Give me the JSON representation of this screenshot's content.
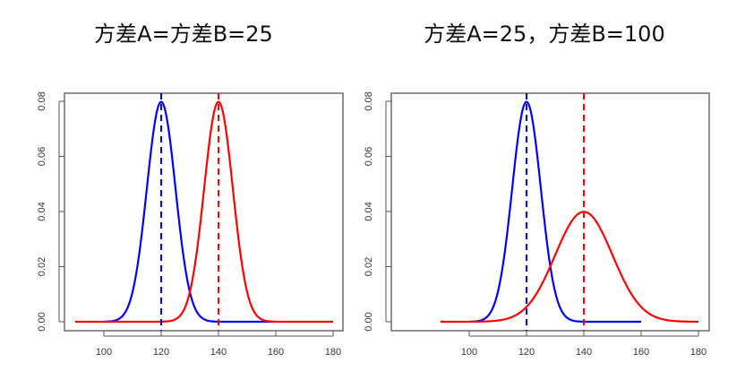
{
  "chart_data": [
    {
      "type": "line",
      "title": "方差A=方差B=25",
      "xlim": [
        90,
        180
      ],
      "ylim": [
        0,
        0.08
      ],
      "xticks": [
        "100",
        "120",
        "140",
        "160",
        "180"
      ],
      "yticks": [
        "0.00",
        "0.02",
        "0.04",
        "0.06",
        "0.08"
      ],
      "grid": false,
      "series": [
        {
          "name": "A",
          "mean": 120,
          "variance": 25,
          "x_range": [
            100,
            160
          ],
          "color": "#0000ff"
        },
        {
          "name": "B",
          "mean": 140,
          "variance": 25,
          "x_range": [
            90,
            180
          ],
          "color": "#ff0000"
        }
      ],
      "vlines": [
        {
          "x": 120,
          "color": "#0000ff",
          "style": "dashed"
        },
        {
          "x": 140,
          "color": "#ff0000",
          "style": "dashed"
        }
      ]
    },
    {
      "type": "line",
      "title": "方差A=25，方差B=100",
      "xlim": [
        90,
        180
      ],
      "ylim": [
        0,
        0.08
      ],
      "xticks": [
        "100",
        "120",
        "140",
        "160",
        "180"
      ],
      "yticks": [
        "0.00",
        "0.02",
        "0.04",
        "0.06",
        "0.08"
      ],
      "grid": false,
      "series": [
        {
          "name": "A",
          "mean": 120,
          "variance": 25,
          "x_range": [
            100,
            160
          ],
          "color": "#0000ff"
        },
        {
          "name": "B",
          "mean": 140,
          "variance": 100,
          "x_range": [
            90,
            180
          ],
          "color": "#ff0000"
        }
      ],
      "vlines": [
        {
          "x": 120,
          "color": "#0000ff",
          "style": "dashed"
        },
        {
          "x": 140,
          "color": "#ff0000",
          "style": "dashed"
        }
      ]
    }
  ]
}
